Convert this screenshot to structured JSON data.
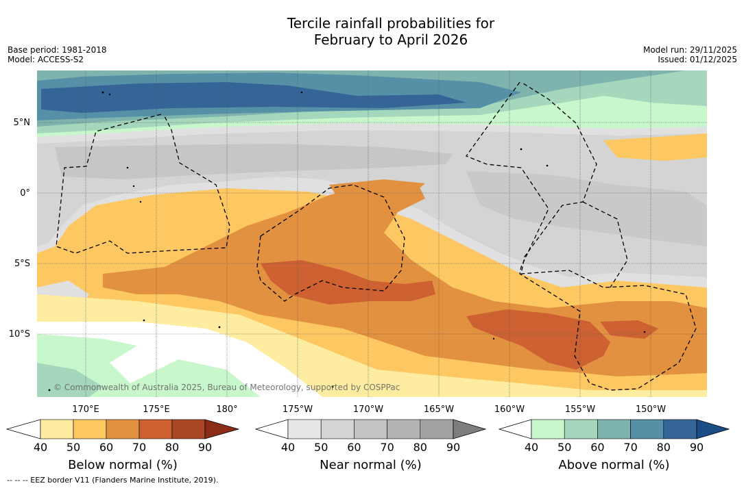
{
  "title": {
    "line1": "Tercile rainfall probabilities for",
    "line2": "February to April 2026"
  },
  "meta_left": {
    "base_period": "Base period: 1981-2018",
    "model": "Model: ACCESS-S2"
  },
  "meta_right": {
    "model_run": "Model run: 29/11/2025",
    "issued": "Issued: 01/12/2025"
  },
  "axes": {
    "lat_labels": [
      "5°N",
      "0°",
      "5°S",
      "10°S"
    ],
    "lon_labels": [
      "170°E",
      "175°E",
      "180°",
      "175°W",
      "170°W",
      "165°W",
      "160°W",
      "155°W",
      "150°W"
    ]
  },
  "copyright": "© Commonwealth of Australia 2025, Bureau of Meteorology, supported by COSPPac",
  "colorbars": [
    {
      "name": "below",
      "title": "Below normal (%)",
      "ticks": [
        "40",
        "50",
        "60",
        "70",
        "80",
        "90"
      ],
      "colors": [
        "#ffffff",
        "#feeca0",
        "#fdc862",
        "#e19140",
        "#cd6131",
        "#aa4825",
        "#8b2c17"
      ]
    },
    {
      "name": "near",
      "title": "Near normal (%)",
      "ticks": [
        "40",
        "50",
        "60",
        "70",
        "80",
        "90"
      ],
      "colors": [
        "#ffffff",
        "#e6e6e6",
        "#d4d4d4",
        "#c3c3c3",
        "#b3b3b3",
        "#a2a2a2",
        "#7d7d7d"
      ]
    },
    {
      "name": "above",
      "title": "Above normal (%)",
      "ticks": [
        "40",
        "50",
        "60",
        "70",
        "80",
        "90"
      ],
      "colors": [
        "#ffffff",
        "#c8f7cc",
        "#a4d7bb",
        "#7fb3ae",
        "#5690a6",
        "#356597",
        "#1b4d85"
      ]
    }
  ],
  "footnote": "-- -- -- EEZ border V11 (Flanders Marine Institute, 2019).",
  "colors": {
    "below50": "#feeca0",
    "below60": "#fdc862",
    "below70": "#e19140",
    "below80": "#cd6131",
    "near40": "#e0e0e0",
    "near50": "#d4d4d4",
    "near60": "#c6c6c6",
    "above50": "#c8f7cc",
    "above60": "#a4d7bb",
    "above70": "#7fb3ae",
    "above80": "#5690a6",
    "above90": "#356597"
  }
}
